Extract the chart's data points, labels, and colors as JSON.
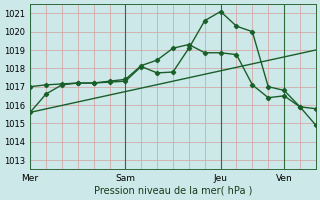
{
  "background_color": "#cce8e8",
  "grid_color_h": "#d4a0a0",
  "grid_color_v": "#d4a0a0",
  "line_color": "#1a5e2a",
  "xlabel": "Pression niveau de la mer( hPa )",
  "ylim": [
    1012.5,
    1021.5
  ],
  "yticks": [
    1013,
    1014,
    1015,
    1016,
    1017,
    1018,
    1019,
    1020,
    1021
  ],
  "xtick_labels": [
    "Mer",
    "Sam",
    "Jeu",
    "Ven"
  ],
  "xtick_positions": [
    0,
    36,
    72,
    96
  ],
  "xlim": [
    0,
    108
  ],
  "vline_color": "#2d6b3a",
  "line1_x": [
    0,
    6,
    12,
    18,
    24,
    30,
    36,
    42,
    48,
    54,
    60,
    66,
    72,
    78,
    84,
    90,
    96,
    102,
    108
  ],
  "line1_y": [
    1017.0,
    1017.1,
    1017.15,
    1017.2,
    1017.2,
    1017.25,
    1017.3,
    1018.1,
    1017.75,
    1017.8,
    1019.1,
    1020.6,
    1021.1,
    1020.3,
    1020.0,
    1017.0,
    1016.8,
    1015.9,
    1015.8
  ],
  "line2_x": [
    0,
    6,
    12,
    18,
    24,
    30,
    36,
    42,
    48,
    54,
    60,
    66,
    72,
    78,
    84,
    90,
    96,
    102,
    108
  ],
  "line2_y": [
    1015.6,
    1016.6,
    1017.1,
    1017.2,
    1017.2,
    1017.3,
    1017.4,
    1018.15,
    1018.45,
    1019.1,
    1019.3,
    1018.85,
    1018.85,
    1018.75,
    1017.1,
    1016.4,
    1016.5,
    1015.9,
    1014.9
  ],
  "line3_x": [
    0,
    108
  ],
  "line3_y": [
    1015.6,
    1019.0
  ],
  "marker": "D",
  "markersize": 2.2,
  "linewidth": 1.0,
  "vlines": [
    0,
    36,
    72,
    96
  ]
}
